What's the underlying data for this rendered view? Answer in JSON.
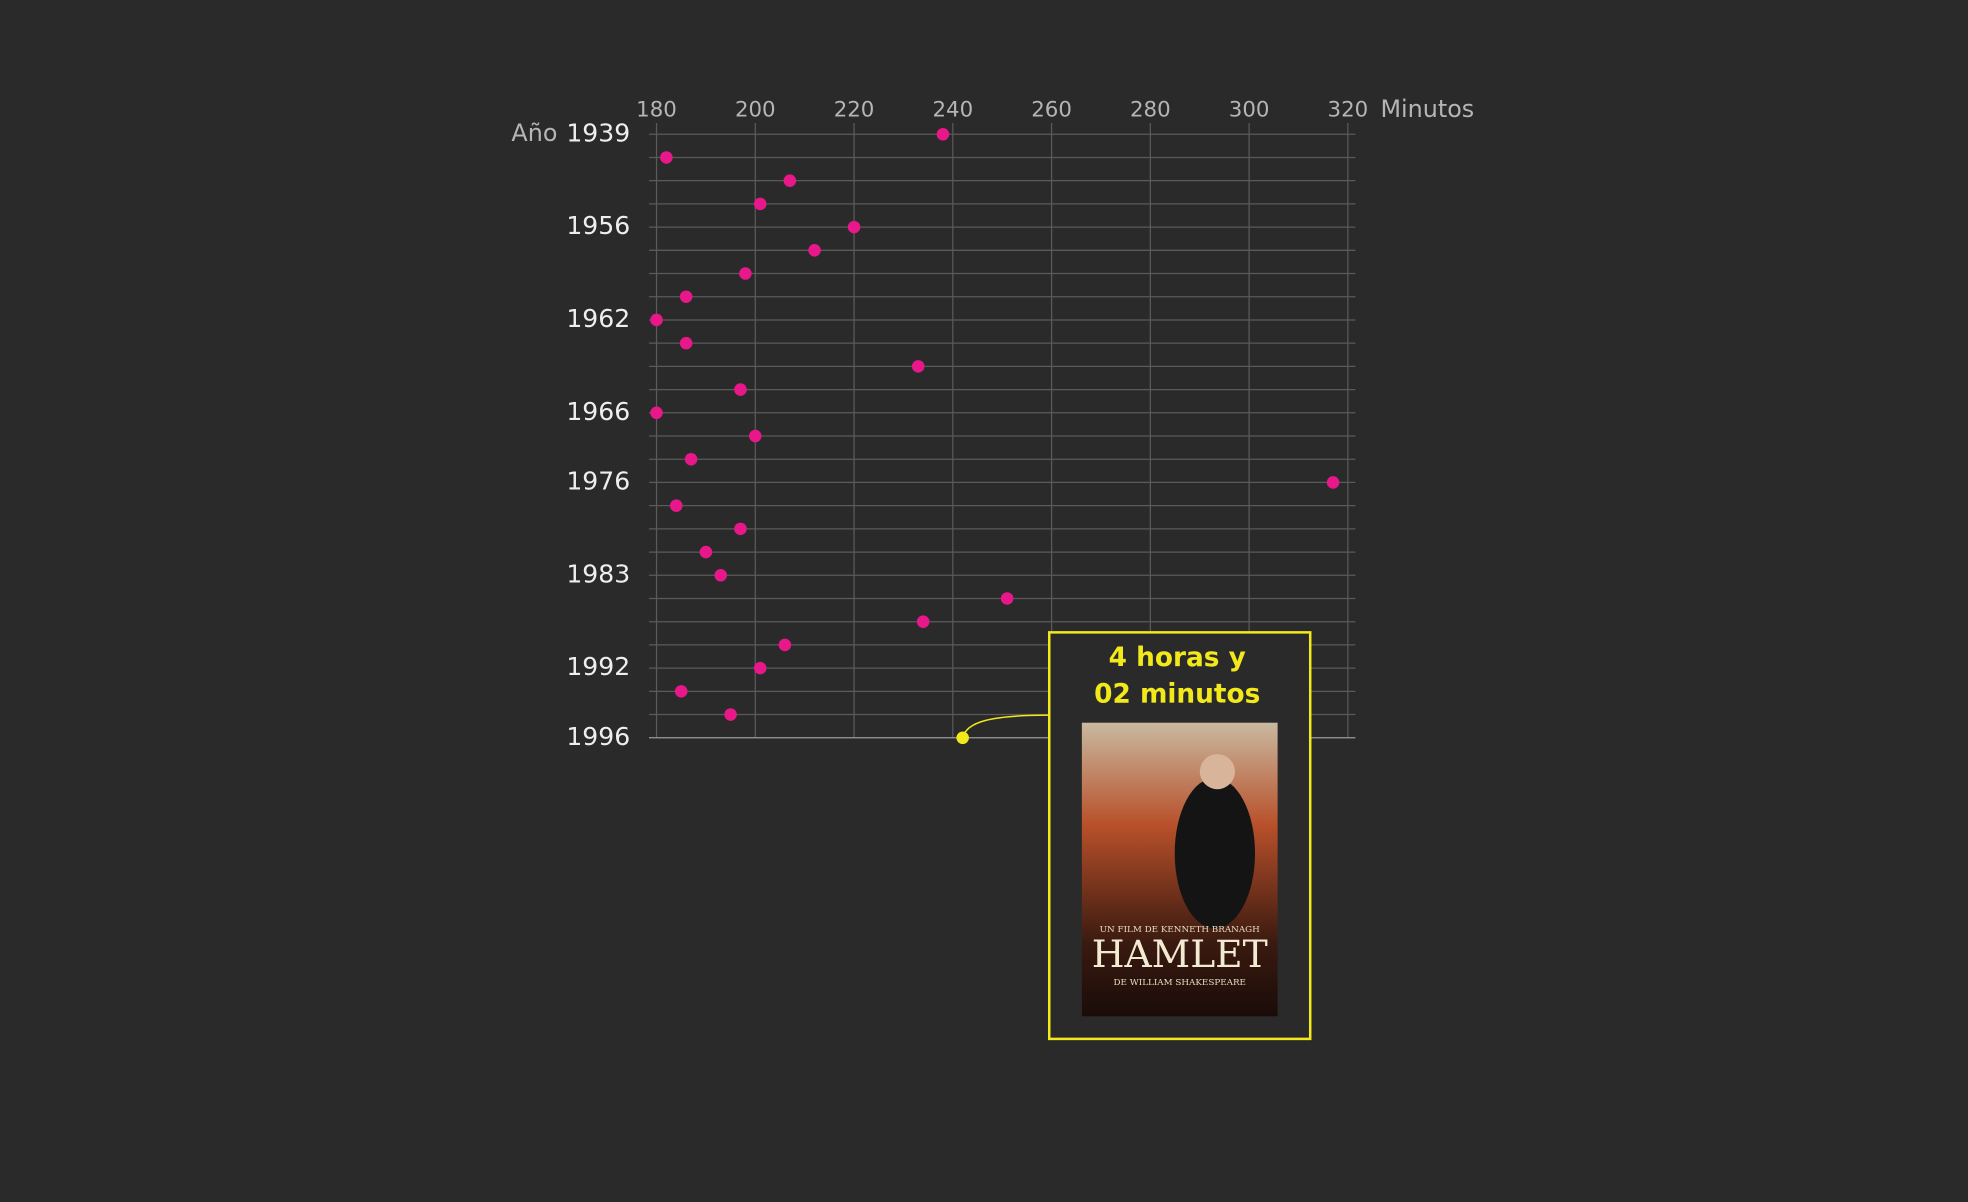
{
  "chart_data": {
    "type": "dot",
    "x_label": "Minutos",
    "y_label": "Año",
    "categories": [
      "1939",
      null,
      null,
      null,
      "1956",
      null,
      null,
      null,
      "1962",
      null,
      null,
      null,
      "1966",
      null,
      null,
      "1976",
      null,
      null,
      null,
      "1983",
      null,
      null,
      null,
      "1992",
      null,
      null,
      "1996"
    ],
    "xlim": [
      180,
      320
    ],
    "xticks": [
      180,
      200,
      220,
      240,
      260,
      280,
      300,
      320
    ],
    "grid": true,
    "series": [
      {
        "color": "#e8178a",
        "values": [
          238,
          182,
          207,
          201,
          220,
          212,
          198,
          186,
          180,
          186,
          233,
          197,
          180,
          200,
          187,
          317,
          184,
          197,
          190,
          193,
          251,
          234,
          206,
          201,
          185,
          195,
          242
        ],
        "highlight": {
          "index": 26,
          "color": "#f2e81a"
        }
      }
    ],
    "annotation": {
      "lines": [
        "4 horas y",
        "02 minutos"
      ],
      "poster": {
        "credit": "UN FILM DE KENNETH BRANAGH",
        "title": "HAMLET",
        "author": "DE WILLIAM SHAKESPEARE"
      }
    }
  }
}
